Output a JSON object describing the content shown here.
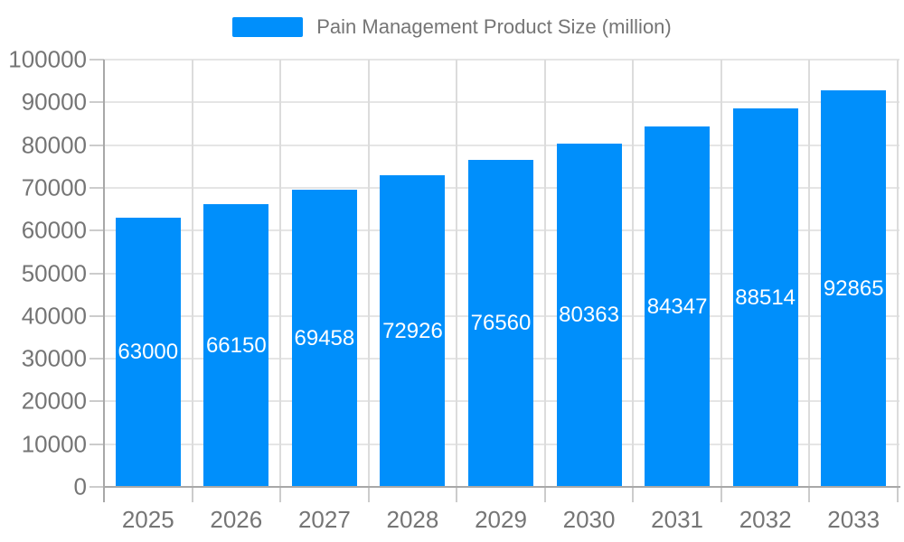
{
  "chart_data": {
    "type": "bar",
    "title": "Pain Management Product Size (million)",
    "legend_position": "top",
    "grid": true,
    "categories": [
      "2025",
      "2026",
      "2027",
      "2028",
      "2029",
      "2030",
      "2031",
      "2032",
      "2033"
    ],
    "values": [
      63000,
      66150,
      69458,
      72926,
      76560,
      80363,
      84347,
      88514,
      92865
    ],
    "bar_value_labels": [
      "63000",
      "66150",
      "69458",
      "72926",
      "76560",
      "80363",
      "84347",
      "88514",
      "92865"
    ],
    "xlabel": "",
    "ylabel": "",
    "ylim": [
      0,
      100000
    ],
    "ytick_step": 10000,
    "ytick_labels": [
      "0",
      "10000",
      "20000",
      "30000",
      "40000",
      "50000",
      "60000",
      "70000",
      "80000",
      "90000",
      "100000"
    ],
    "colors": {
      "bar": "#008FFB",
      "bar_label": "#FFFFFF",
      "axis_text": "#757575",
      "grid_line_h": "#e5e5e5",
      "grid_line_v": "#dcdcdc",
      "axis_line": "#a8a8a8",
      "tick_line": "#cccccc",
      "background": "#ffffff"
    }
  }
}
